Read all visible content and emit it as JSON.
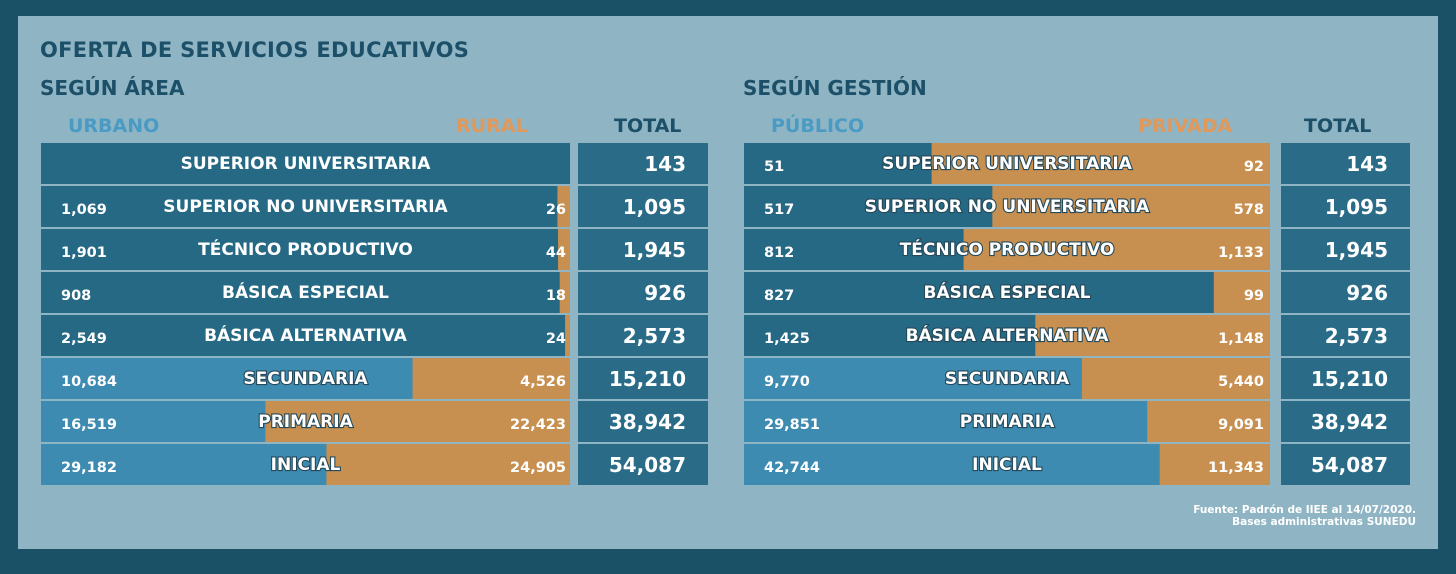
{
  "title": "OFERTA DE SERVICIOS EDUCATIVOS",
  "footnote": {
    "line1": "Fuente: Padrón de IIEE al 14/07/2020.",
    "line2": "Bases administrativas SUNEDU"
  },
  "colors": {
    "background": "#1b5167",
    "panel": "#8fb4c4",
    "dark_bar": "#266985",
    "light_bar": "#3e8bb2",
    "orange_bar": "#c79050",
    "total_cell": "#2a6c88"
  },
  "chart_data": [
    {
      "type": "bar",
      "subtitle": "SEGÚN ÁREA",
      "series": [
        {
          "name": "URBANO",
          "values": [
            null,
            1069,
            1901,
            908,
            2549,
            10684,
            16519,
            29182
          ]
        },
        {
          "name": "RURAL",
          "values": [
            null,
            26,
            44,
            18,
            24,
            4526,
            22423,
            24905
          ]
        }
      ],
      "categories": [
        "SUPERIOR UNIVERSITARIA",
        "SUPERIOR NO UNIVERSITARIA",
        "TÉCNICO PRODUCTIVO",
        "BÁSICA ESPECIAL",
        "BÁSICA ALTERNATIVA",
        "SECUNDARIA",
        "PRIMARIA",
        "INICIAL"
      ],
      "labels_a": [
        "",
        "1,069",
        "1,901",
        "908",
        "2,549",
        "10,684",
        "16,519",
        "29,182"
      ],
      "labels_b": [
        "",
        "26",
        "44",
        "18",
        "24",
        "4,526",
        "22,423",
        "24,905"
      ],
      "total_header": "TOTAL",
      "totals": [
        "143",
        "1,095",
        "1,945",
        "926",
        "2,573",
        "15,210",
        "38,942",
        "54,087"
      ],
      "total_values": [
        143,
        1095,
        1945,
        926,
        2573,
        15210,
        38942,
        54087
      ]
    },
    {
      "type": "bar",
      "subtitle": "SEGÚN GESTIÓN",
      "series": [
        {
          "name": "PÚBLICO",
          "values": [
            51,
            517,
            812,
            827,
            1425,
            9770,
            29851,
            42744
          ]
        },
        {
          "name": "PRIVADA",
          "values": [
            92,
            578,
            1133,
            99,
            1148,
            5440,
            9091,
            11343
          ]
        }
      ],
      "categories": [
        "SUPERIOR UNIVERSITARIA",
        "SUPERIOR NO UNIVERSITARIA",
        "TÉCNICO PRODUCTIVO",
        "BÁSICA ESPECIAL",
        "BÁSICA ALTERNATIVA",
        "SECUNDARIA",
        "PRIMARIA",
        "INICIAL"
      ],
      "labels_a": [
        "51",
        "517",
        "812",
        "827",
        "1,425",
        "9,770",
        "29,851",
        "42,744"
      ],
      "labels_b": [
        "92",
        "578",
        "1,133",
        "99",
        "1,148",
        "5,440",
        "9,091",
        "11,343"
      ],
      "total_header": "TOTAL",
      "totals": [
        "143",
        "1,095",
        "1,945",
        "926",
        "2,573",
        "15,210",
        "38,942",
        "54,087"
      ],
      "total_values": [
        143,
        1095,
        1945,
        926,
        2573,
        15210,
        38942,
        54087
      ]
    }
  ]
}
